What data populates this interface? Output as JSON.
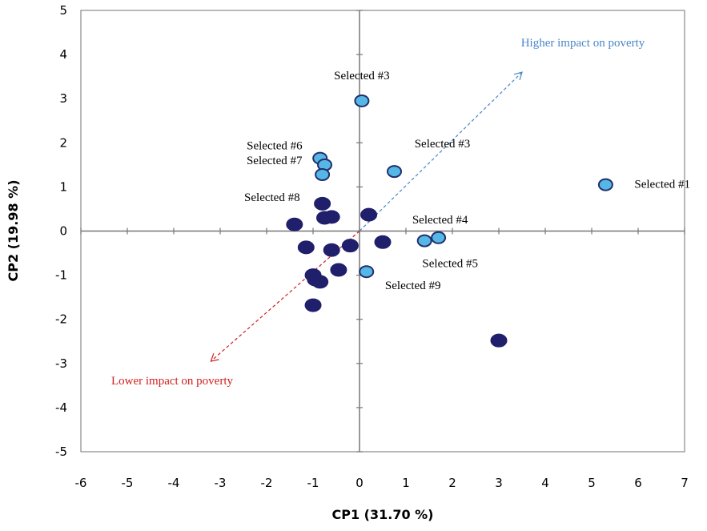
{
  "chart_data": {
    "type": "scatter",
    "title": "",
    "xlabel": "CP1 (31.70 %)",
    "ylabel": "CP2 (19.98 %)",
    "xlim": [
      -6,
      7
    ],
    "ylim": [
      -5,
      5
    ],
    "xticks": [
      -6,
      -5,
      -4,
      -3,
      -2,
      -1,
      0,
      1,
      2,
      3,
      4,
      5,
      6,
      7
    ],
    "yticks": [
      -5,
      -4,
      -3,
      -2,
      -1,
      0,
      1,
      2,
      3,
      4,
      5
    ],
    "grid": false,
    "legend": "none",
    "colors": {
      "dark_fill": "#1f1f6b",
      "light_fill": "#56b7e6",
      "light_stroke": "#1f2f6b",
      "higher_arrow": "#4a86c8",
      "lower_arrow": "#d02020"
    },
    "series": [
      {
        "points": [
          {
            "x": -1.4,
            "y": 0.15
          },
          {
            "x": -0.8,
            "y": 0.62
          },
          {
            "x": -0.75,
            "y": 0.3
          },
          {
            "x": -0.6,
            "y": 0.32
          },
          {
            "x": 0.2,
            "y": 0.37
          },
          {
            "x": -1.15,
            "y": -0.37
          },
          {
            "x": -0.6,
            "y": -0.43
          },
          {
            "x": -0.2,
            "y": -0.33
          },
          {
            "x": 0.5,
            "y": -0.25
          },
          {
            "x": -0.45,
            "y": -0.88
          },
          {
            "x": -1.0,
            "y": -1.0
          },
          {
            "x": -0.95,
            "y": -1.1
          },
          {
            "x": -0.85,
            "y": -1.15
          },
          {
            "x": -1.0,
            "y": -1.68
          },
          {
            "x": 3.0,
            "y": -2.48
          }
        ]
      },
      {
        "points": [
          {
            "x": 0.05,
            "y": 2.95,
            "label": "Selected #3"
          },
          {
            "x": 0.75,
            "y": 1.35,
            "label": "Selected #3"
          },
          {
            "x": 5.3,
            "y": 1.05,
            "label": "Selected #1"
          },
          {
            "x": -0.85,
            "y": 1.65,
            "label": "Selected #6"
          },
          {
            "x": -0.75,
            "y": 1.5,
            "label": "Selected #7"
          },
          {
            "x": -0.8,
            "y": 1.28,
            "label": "Selected #8"
          },
          {
            "x": 1.7,
            "y": -0.15,
            "label": "Selected #4"
          },
          {
            "x": 1.4,
            "y": -0.22,
            "label": "Selected #5"
          },
          {
            "x": 0.15,
            "y": -0.92,
            "label": "Selected #9"
          }
        ]
      }
    ],
    "annotations": [
      {
        "text": "Higher impact on poverty",
        "from": [
          0,
          0
        ],
        "to": [
          3.5,
          3.6
        ],
        "color": "#4a86c8"
      },
      {
        "text": "Lower impact on poverty",
        "from": [
          0,
          0
        ],
        "to": [
          -3.2,
          -2.95
        ],
        "color": "#d02020"
      }
    ]
  }
}
